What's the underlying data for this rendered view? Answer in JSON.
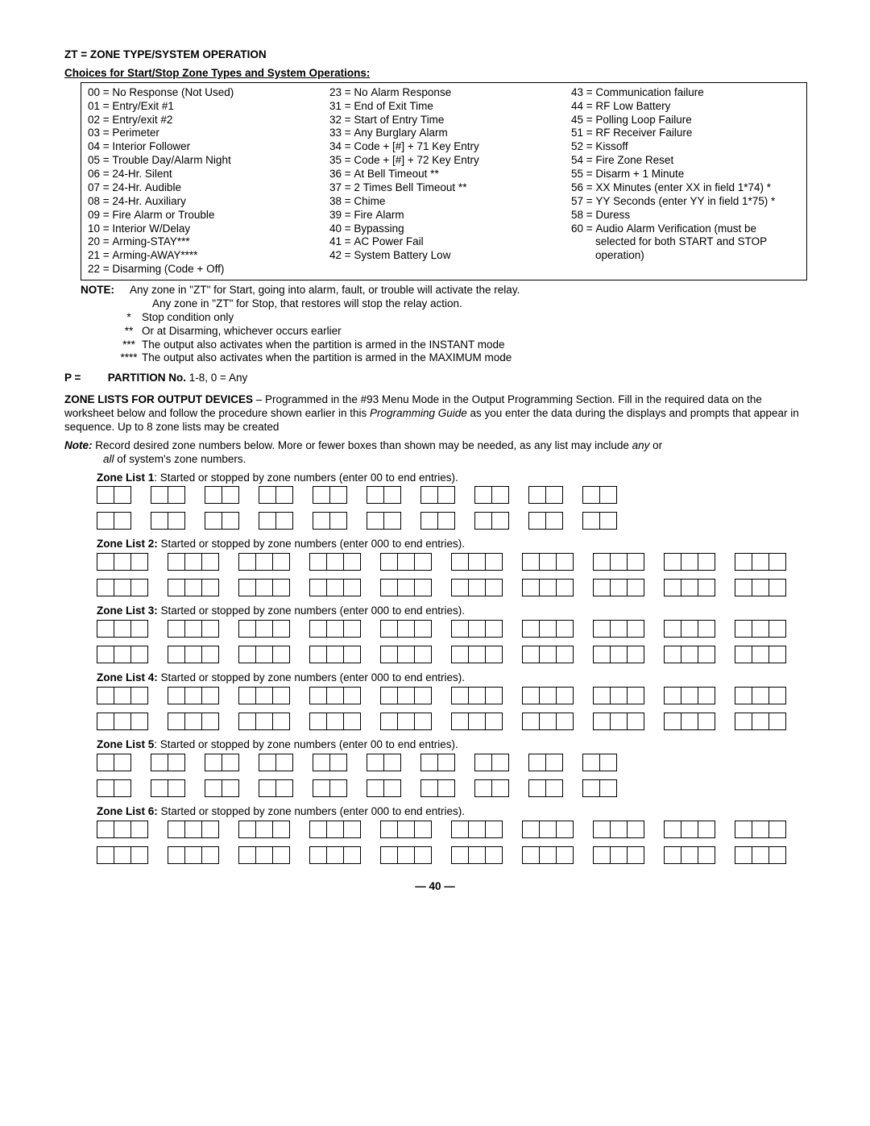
{
  "heading": "ZT =    ZONE TYPE/SYSTEM OPERATION",
  "subheading": "Choices for Start/Stop Zone Types and System Operations:",
  "zt": {
    "col1": [
      "00 = No Response (Not Used)",
      "01 = Entry/Exit #1",
      "02 = Entry/exit #2",
      "03 = Perimeter",
      "04 = Interior Follower",
      "05 = Trouble Day/Alarm Night",
      "06 = 24-Hr. Silent",
      "07 = 24-Hr. Audible",
      "08 = 24-Hr. Auxiliary",
      "09 = Fire Alarm or Trouble",
      "10 = Interior W/Delay",
      "20 = Arming-STAY***",
      "21 = Arming-AWAY****",
      "22 = Disarming (Code + Off)"
    ],
    "col2": [
      "23 = No Alarm Response",
      "31 = End of Exit Time",
      "32 = Start of Entry Time",
      "33 = Any Burglary Alarm",
      "34 = Code + [#] + 71 Key Entry",
      "35 = Code + [#] + 72 Key Entry",
      "36 = At Bell Timeout **",
      "37 = 2 Times Bell Timeout **",
      "38 = Chime",
      "39 = Fire Alarm",
      "40 = Bypassing",
      "41 = AC Power Fail",
      "42 = System Battery Low"
    ],
    "col3": [
      "43 = Communication failure",
      "44 = RF Low Battery",
      "45 = Polling Loop Failure",
      "51 = RF Receiver Failure",
      "52 = Kissoff",
      "54 = Fire Zone Reset",
      "55 = Disarm + 1 Minute",
      "56 = XX Minutes (enter XX in field 1*74) *",
      "57 = YY Seconds (enter YY in field 1*75) *",
      "58 = Duress",
      "60 = Audio Alarm Verification (must be",
      "        selected for both START and STOP",
      "        operation)"
    ]
  },
  "note_label": "NOTE:",
  "note_lines": [
    "Any zone in \"ZT\" for Start, going into alarm, fault, or trouble will activate the relay.",
    "Any zone in \"ZT\" for Stop, that restores will stop the relay action."
  ],
  "stars": [
    {
      "s": "*",
      "t": "Stop condition only"
    },
    {
      "s": "**",
      "t": "Or at Disarming, whichever occurs earlier"
    },
    {
      "s": "***",
      "t": "The output also activates when the partition is armed in the INSTANT mode"
    },
    {
      "s": "****",
      "t": "The output also activates when the partition is armed in the MAXIMUM mode"
    }
  ],
  "partition": {
    "prefix": "P =",
    "label": "PARTITION No.",
    "rest": "  1-8, 0 = Any"
  },
  "para_bold": "ZONE LISTS FOR OUTPUT DEVICES",
  "para_rest": " – Programmed in the #93 Menu Mode in the Output Programming Section. Fill in the required data on the worksheet below and follow the procedure shown earlier in this ",
  "para_ital": "Programming Guide",
  "para_rest2": " as you enter the data during the displays and prompts that appear in sequence. Up to 8 zone lists may be created",
  "note2_label": "Note:",
  "note2_text_a": "  Record desired zone numbers below. More or fewer boxes than shown may be needed, as any list may include ",
  "note2_ital1": "any",
  "note2_text_b": " or ",
  "note2_ital2": "all",
  "note2_text_c": " of system's zone numbers.",
  "zone_lists": [
    {
      "n": "1",
      "cells": 2,
      "label": ": Started or stopped by zone numbers (enter 00 to end entries)."
    },
    {
      "n": "2",
      "cells": 3,
      "label": " Started or stopped by zone numbers (enter 000 to end entries)."
    },
    {
      "n": "3",
      "cells": 3,
      "label": " Started or stopped by zone numbers (enter 000 to end entries)."
    },
    {
      "n": "4",
      "cells": 3,
      "label": " Started or stopped by zone numbers (enter 000 to end entries)."
    },
    {
      "n": "5",
      "cells": 2,
      "label": ": Started or stopped by zone numbers (enter 00 to end entries)."
    },
    {
      "n": "6",
      "cells": 3,
      "label": " Started or stopped by zone numbers (enter 000 to end entries)."
    }
  ],
  "groups_per_row": 10,
  "rows_per_list": 2,
  "pagenum": "— 40 —"
}
